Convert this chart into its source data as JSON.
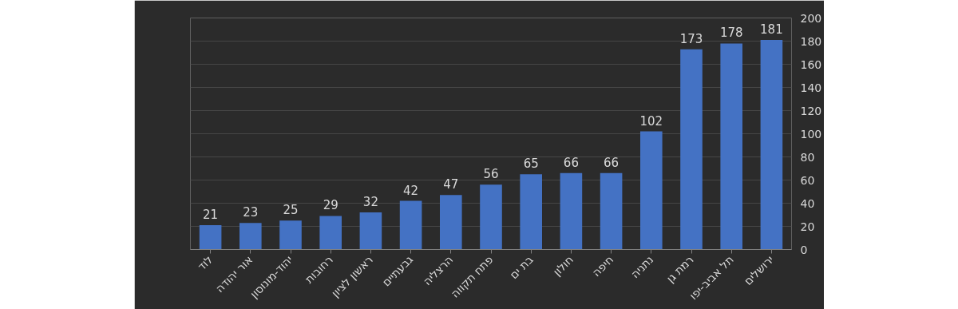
{
  "chart_data": {
    "type": "bar",
    "categories": [
      "לוד",
      "אור יהודה",
      "יהוד-מונוסון",
      "רחובות",
      "ראשון לציון",
      "גבעתיים",
      "הרצליה",
      "פתח תקווה",
      "בת ים",
      "חולון",
      "חיפה",
      "נתניה",
      "רמת גן",
      "תל אביב-יפו",
      "ירושלים"
    ],
    "values": [
      21,
      23,
      25,
      29,
      32,
      42,
      47,
      56,
      65,
      66,
      66,
      102,
      173,
      178,
      181
    ],
    "color": "#4472c4",
    "ylim": [
      0,
      200
    ],
    "yticks": [
      0,
      20,
      40,
      60,
      80,
      100,
      120,
      140,
      160,
      180,
      200
    ],
    "grid": "y",
    "data_labels": true
  }
}
